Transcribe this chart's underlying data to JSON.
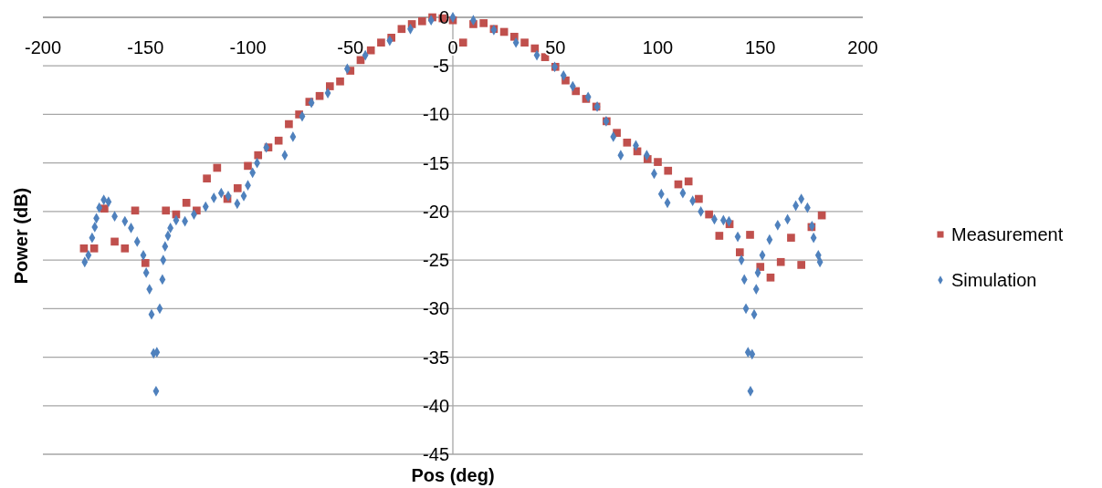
{
  "chart_data": {
    "type": "scatter",
    "xlabel": "Pos (deg)",
    "ylabel": "Power (dB)",
    "xlim": [
      -200,
      200
    ],
    "xticks": [
      -200,
      -150,
      -100,
      -50,
      0,
      50,
      100,
      150,
      200
    ],
    "ylim": [
      -45,
      0
    ],
    "yticks": [
      -45,
      -40,
      -35,
      -30,
      -25,
      -20,
      -15,
      -10,
      -5,
      0
    ],
    "grid": "y",
    "legend": "right",
    "series": [
      {
        "name": "Measurement",
        "color": "#c0504d",
        "marker": "square",
        "x": [
          -180,
          -175,
          -170,
          -165,
          -160,
          -155,
          -150,
          -140,
          -135,
          -130,
          -125,
          -120,
          -115,
          -110,
          -105,
          -100,
          -95,
          -90,
          -85,
          -80,
          -75,
          -70,
          -65,
          -60,
          -55,
          -50,
          -45,
          -40,
          -35,
          -30,
          -25,
          -20,
          -15,
          -10,
          -5,
          0,
          5,
          10,
          15,
          20,
          25,
          30,
          35,
          40,
          45,
          50,
          55,
          60,
          65,
          70,
          75,
          80,
          85,
          90,
          95,
          100,
          105,
          110,
          115,
          120,
          125,
          130,
          135,
          140,
          145,
          150,
          155,
          160,
          165,
          170,
          175,
          180
        ],
        "values": [
          -23.8,
          -23.8,
          -19.7,
          -23.1,
          -23.8,
          -19.9,
          -25.3,
          -19.9,
          -20.3,
          -19.1,
          -19.9,
          -16.6,
          -15.5,
          -18.7,
          -17.6,
          -15.3,
          -14.2,
          -13.4,
          -12.7,
          -11,
          -10,
          -8.7,
          -8.1,
          -7.1,
          -6.6,
          -5.5,
          -4.4,
          -3.4,
          -2.6,
          -2.1,
          -1.2,
          -0.7,
          -0.4,
          0,
          -0.1,
          -0.3,
          -2.6,
          -0.7,
          -0.6,
          -1.2,
          -1.5,
          -2,
          -2.6,
          -3.2,
          -4.1,
          -5.1,
          -6.5,
          -7.6,
          -8.4,
          -9.2,
          -10.7,
          -11.9,
          -12.9,
          -13.8,
          -14.6,
          -14.9,
          -15.8,
          -17.2,
          -16.9,
          -18.7,
          -20.3,
          -22.5,
          -21.3,
          -24.2,
          -22.4,
          -25.7,
          -26.8,
          -25.2,
          -22.7,
          -25.5,
          -21.6,
          -20.4
        ]
      },
      {
        "name": "Simulation",
        "color": "#4f81bd",
        "marker": "diamond",
        "x": [
          -179.6,
          -177.8,
          -176,
          -174.7,
          -173.9,
          -172.5,
          -170.3,
          -168,
          -165,
          -160,
          -157,
          -154,
          -151,
          -149.6,
          -148,
          -147,
          -146,
          -144.8,
          -144.4,
          -143,
          -141.7,
          -141.3,
          -140.4,
          -139,
          -137.8,
          -135,
          -130.7,
          -126.3,
          -120.6,
          -116.6,
          -113,
          -109.6,
          -105.2,
          -102,
          -100,
          -97.7,
          -95.5,
          -91,
          -82,
          -78,
          -73.5,
          -69,
          -61,
          -51.5,
          -42.7,
          -30.8,
          -20.7,
          -10.6,
          0,
          10,
          20,
          30.8,
          41,
          49.7,
          54,
          58.5,
          66,
          70.4,
          74.8,
          78.3,
          81.9,
          89.3,
          94.6,
          98.2,
          101.7,
          104.7,
          112.2,
          117,
          121,
          127.6,
          132,
          134.7,
          139,
          140.8,
          142.2,
          143,
          144,
          145.2,
          146,
          147,
          148,
          148.8,
          151,
          154.5,
          158.5,
          163.3,
          167.3,
          170,
          173,
          175.2,
          176,
          178.3,
          179.1
        ],
        "values": [
          -25.2,
          -24.5,
          -22.7,
          -21.6,
          -20.7,
          -19.6,
          -18.8,
          -19,
          -20.5,
          -21,
          -21.7,
          -23.1,
          -24.5,
          -26.3,
          -28,
          -30.6,
          -34.6,
          -38.5,
          -34.5,
          -30,
          -27,
          -25,
          -23.6,
          -22.5,
          -21.7,
          -20.9,
          -21,
          -20.3,
          -19.5,
          -18.6,
          -18.1,
          -18.4,
          -19.2,
          -18.4,
          -17.3,
          -16,
          -15,
          -13.4,
          -14.2,
          -12.3,
          -10.2,
          -8.8,
          -7.8,
          -5.3,
          -3.9,
          -2.4,
          -1.2,
          -0.3,
          0,
          -0.3,
          -1.3,
          -2.6,
          -3.9,
          -5.1,
          -6,
          -7.1,
          -8.2,
          -9.2,
          -10.7,
          -12.3,
          -14.2,
          -13.2,
          -14.2,
          -16.1,
          -18.2,
          -19.1,
          -18.1,
          -18.9,
          -20,
          -20.8,
          -20.9,
          -21,
          -22.6,
          -25,
          -27,
          -30,
          -34.5,
          -38.5,
          -34.7,
          -30.6,
          -28,
          -26.3,
          -24.5,
          -22.9,
          -21.4,
          -20.8,
          -19.4,
          -18.7,
          -19.6,
          -21.5,
          -22.7,
          -24.5,
          -25.2
        ]
      }
    ]
  }
}
